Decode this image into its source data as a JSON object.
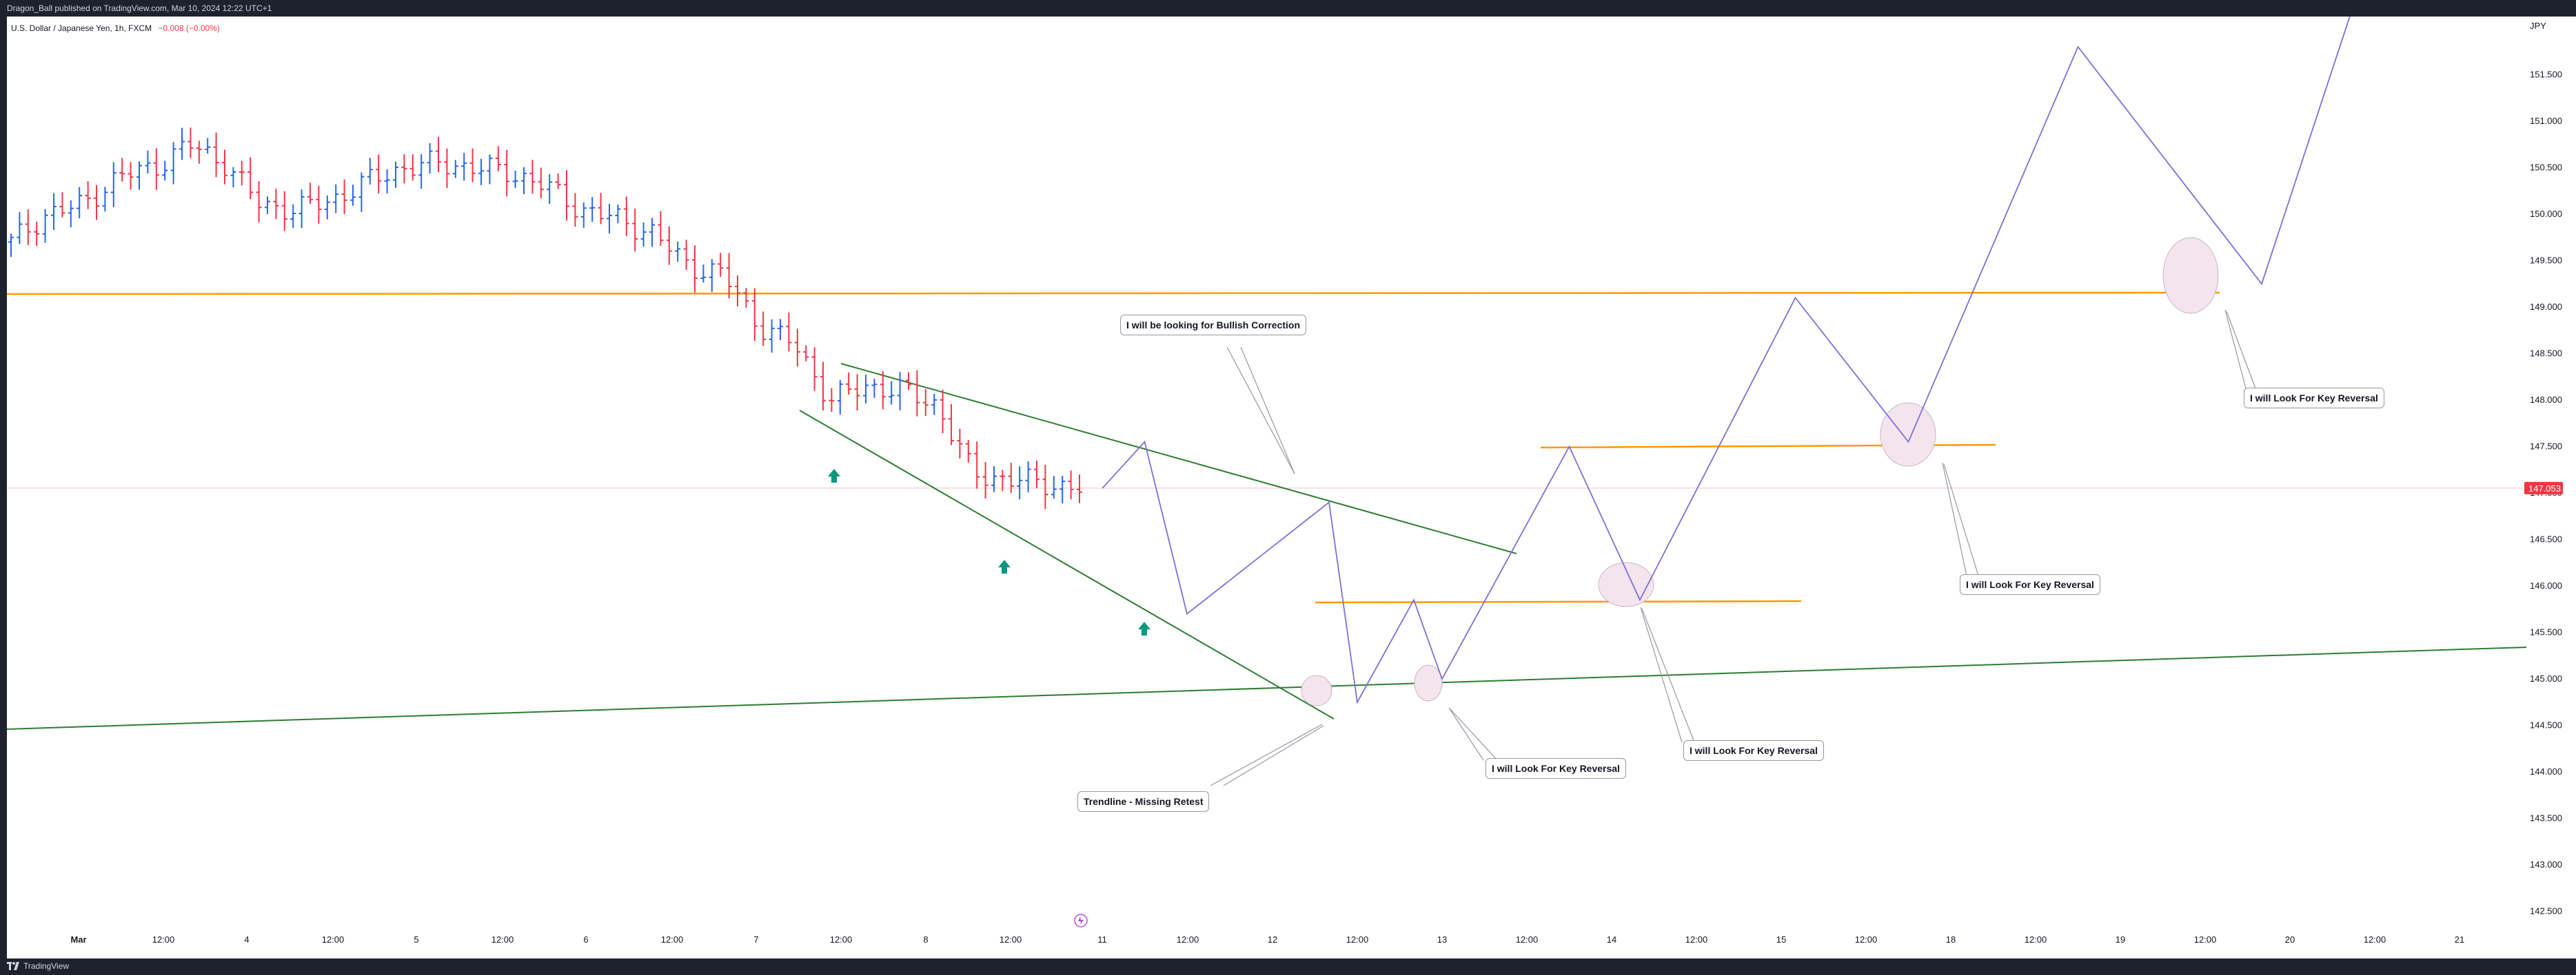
{
  "header": {
    "publisher": "Dragon_Ball published on TradingView.com, Mar 10, 2024 12:22 UTC+1"
  },
  "legend": {
    "symbol": "U.S. Dollar / Japanese Yen, 1h, FXCM",
    "change": "−0.008 (−0.00%)"
  },
  "footer": {
    "brand": "TradingView"
  },
  "price_axis": {
    "currency": "JPY",
    "last_price": "147.053"
  },
  "callouts": {
    "bullish": "I will be looking for Bullish Correction",
    "trendline": "Trendline - Missing Retest",
    "reversal_1": "I will Look For Key Reversal",
    "reversal_2": "I will Look For Key Reversal",
    "reversal_3": "I will Look For Key Reversal",
    "reversal_4": "I will Look For Key Reversal"
  },
  "colors": {
    "up": "#2962ff",
    "down": "#f23645",
    "trendline": "#2e7d32",
    "level": "#ff9800",
    "path": "#7e6fd6",
    "zone": "#f3e4ee",
    "arrow": "#089981"
  },
  "chart_data": {
    "type": "candlestick",
    "symbol": "USDJPY",
    "timeframe": "1h",
    "ylim": [
      142.3,
      152.25
    ],
    "y_ticks": [
      "142.500",
      "143.000",
      "143.500",
      "144.000",
      "144.500",
      "145.000",
      "145.500",
      "146.000",
      "146.500",
      "147.000",
      "147.500",
      "148.000",
      "148.500",
      "149.000",
      "149.500",
      "150.000",
      "150.500",
      "151.000",
      "151.500"
    ],
    "x_ticks": [
      "Mar",
      "12:00",
      "4",
      "12:00",
      "5",
      "12:00",
      "6",
      "12:00",
      "7",
      "12:00",
      "8",
      "12:00",
      "11",
      "12:00",
      "12",
      "12:00",
      "13",
      "12:00",
      "14",
      "12:00",
      "15",
      "12:00",
      "18",
      "12:00",
      "19",
      "12:00",
      "20",
      "12:00",
      "21"
    ],
    "price_path": [
      149.7,
      150.0,
      150.1,
      150.4,
      150.5,
      150.75,
      150.55,
      150.1,
      150.05,
      150.15,
      150.35,
      150.5,
      150.55,
      150.5,
      150.45,
      150.3,
      150.05,
      149.95,
      149.8,
      149.45,
      149.35,
      148.8,
      148.6,
      148.0,
      148.15,
      148.1,
      147.95,
      147.2,
      147.15,
      147.1,
      147.05
    ],
    "projection": [
      {
        "x": "Mar 11 00:00",
        "y": 147.05
      },
      {
        "x": "Mar 11 06:00",
        "y": 147.55
      },
      {
        "x": "Mar 11 12:00",
        "y": 145.7
      },
      {
        "x": "Mar 12 08:00",
        "y": 146.9
      },
      {
        "x": "Mar 12 12:00",
        "y": 144.75
      },
      {
        "x": "Mar 12 20:00",
        "y": 145.85
      },
      {
        "x": "Mar 13 00:00",
        "y": 145.0
      },
      {
        "x": "Mar 13 18:00",
        "y": 147.5
      },
      {
        "x": "Mar 14 04:00",
        "y": 145.85
      },
      {
        "x": "Mar 15 02:00",
        "y": 149.1
      },
      {
        "x": "Mar 15 18:00",
        "y": 147.55
      },
      {
        "x": "Mar 18 18:00",
        "y": 151.8
      },
      {
        "x": "Mar 19 20:00",
        "y": 149.25
      },
      {
        "x": "Mar 20 09:00",
        "y": 152.25
      }
    ],
    "levels": [
      149.15,
      147.5,
      145.85
    ],
    "annotations": [
      "I will be looking for Bullish Correction",
      "Trendline - Missing Retest",
      "I will Look For Key Reversal"
    ]
  }
}
